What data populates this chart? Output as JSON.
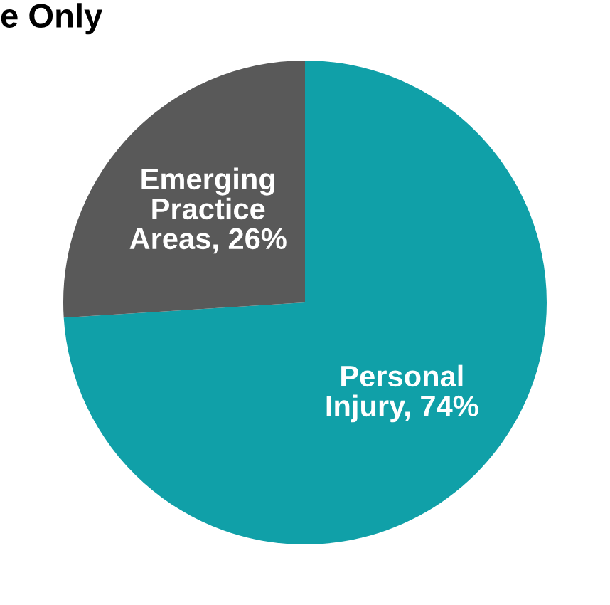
{
  "chart_data": {
    "type": "pie",
    "title": "e Only",
    "categories": [
      "Personal Injury",
      "Emerging Practice Areas"
    ],
    "values": [
      74,
      26
    ],
    "colors": [
      "#10a0a8",
      "#595959"
    ],
    "value_labels": [
      "74%",
      "26%"
    ]
  }
}
